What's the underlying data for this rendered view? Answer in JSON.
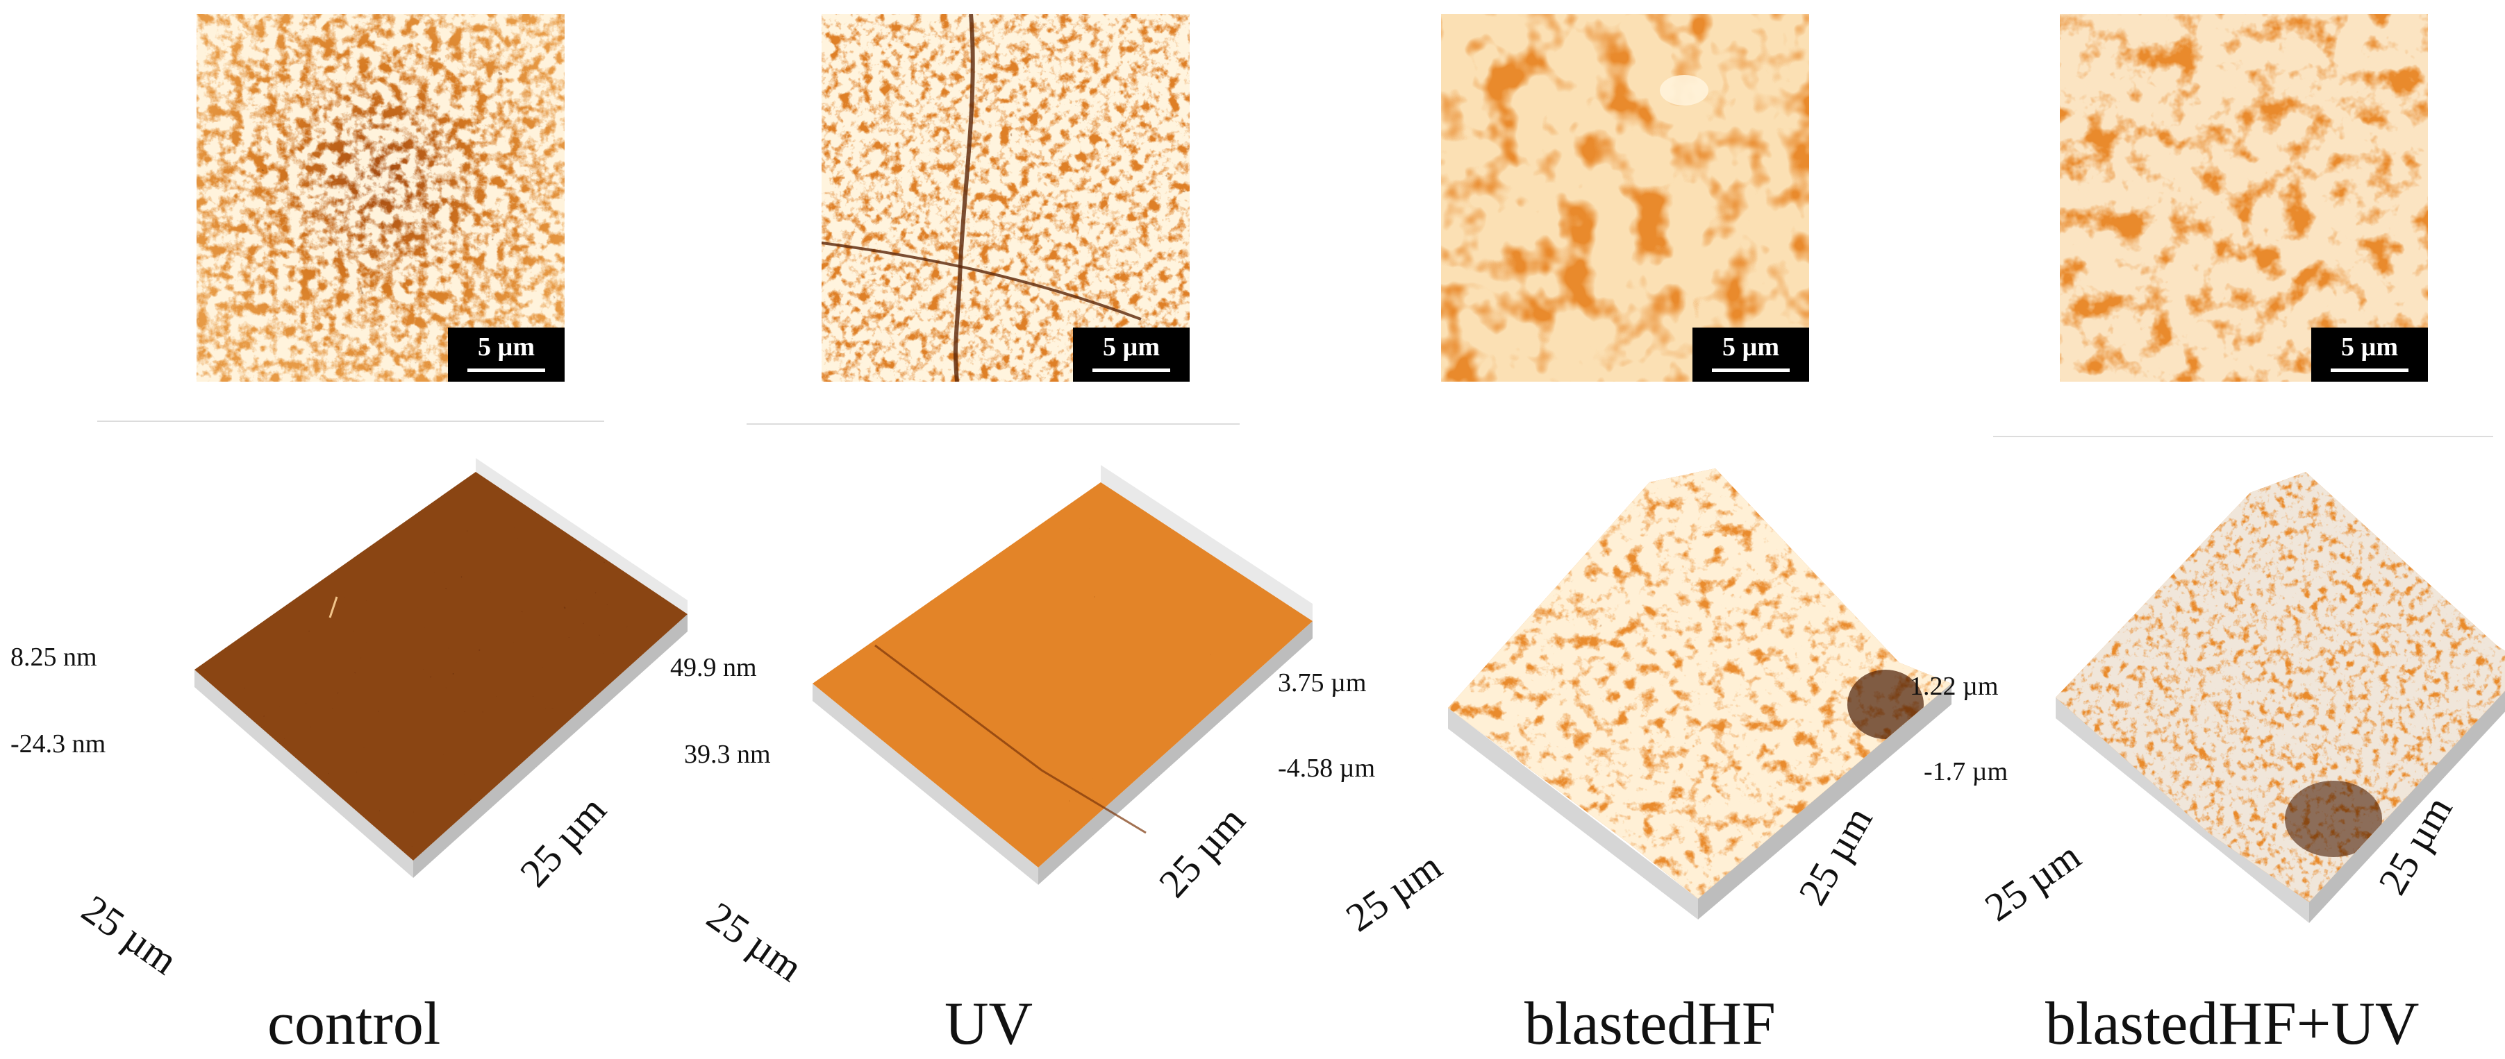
{
  "scale_bar_label": "5 µm",
  "panels": [
    {
      "id": "control",
      "caption": "control",
      "max_height": "8.25 nm",
      "min_height": "-24.3 nm",
      "x_extent": "25 µm",
      "y_extent": "25 µm",
      "colors": {
        "light": "#f7ddb6",
        "mid": "#e28224",
        "dark": "#5a2a0a"
      }
    },
    {
      "id": "uv",
      "caption": "UV",
      "max_height": "49.9  nm",
      "min_height": "39.3 nm",
      "x_extent": "25 µm",
      "y_extent": "25 µm",
      "colors": {
        "light": "#f9e2bf",
        "mid": "#e6882a",
        "dark": "#6a300c"
      }
    },
    {
      "id": "blastedhf",
      "caption": "blastedHF",
      "max_height": "3.75 µm",
      "min_height": "-4.58 µm",
      "x_extent": "25 µm",
      "y_extent": "25 µm",
      "colors": {
        "light": "#fbe3c0",
        "mid": "#ea8c2c",
        "dark": "#5c2608"
      }
    },
    {
      "id": "blastedhf-uv",
      "caption": "blastedHF+UV",
      "max_height": "1.22  µm",
      "min_height": "-1.7  µm",
      "x_extent": "25 µm",
      "y_extent": "25 µm",
      "colors": {
        "light": "#fbe6c6",
        "mid": "#ea8a2a",
        "dark": "#5c2608"
      }
    }
  ]
}
